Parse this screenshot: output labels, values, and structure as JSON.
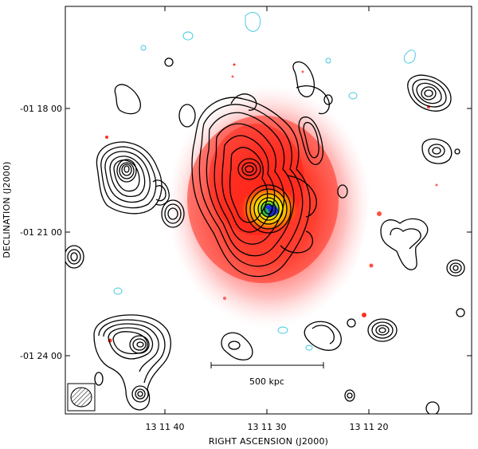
{
  "figure": {
    "x_axis_label": "RIGHT ASCENSION  (J2000)",
    "y_axis_label": "DECLINATION  (J2000)",
    "x_tick_labels": [
      "13 11 40",
      "13 11 30",
      "13 11 20"
    ],
    "y_tick_labels": [
      "-01 18 00",
      "-01 21 00",
      "-01 24 00"
    ],
    "scale_bar_label": "500 kpc",
    "colors": {
      "xray_low": "#ffd6d6",
      "xray_mid": "#ff2a1a",
      "xray_high_orange": "#ff8a00",
      "xray_high_yellow": "#ffe600",
      "xray_peak_green": "#28c83a",
      "xray_peak_blue": "#1e2fe0",
      "radio_contour_positive": "#000000",
      "radio_contour_negative": "#39c6dd",
      "frame": "#000000"
    },
    "beam_symbol": "hatched-ellipse"
  }
}
